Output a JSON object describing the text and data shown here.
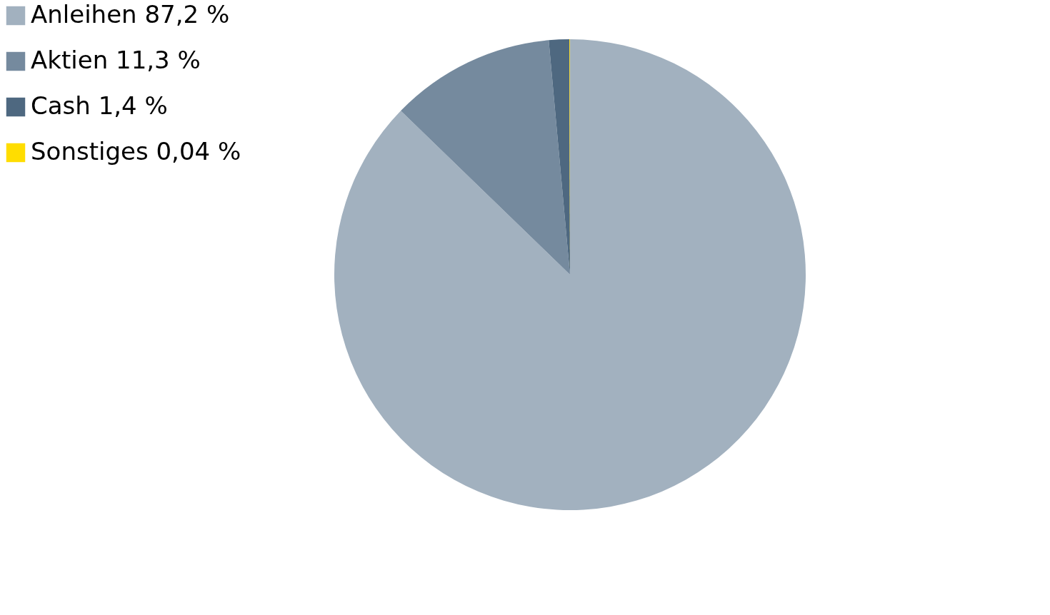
{
  "chart_data": {
    "type": "pie",
    "categories": [
      "Anleihen",
      "Aktien",
      "Cash",
      "Sonstiges"
    ],
    "values": [
      87.2,
      11.3,
      1.4,
      0.04
    ],
    "value_labels": [
      "87,2 %",
      "11,3 %",
      "1,4 %",
      "0,04 %"
    ],
    "colors": [
      "#a2b1bf",
      "#758a9e",
      "#4e6880",
      "#ffdd00"
    ],
    "legend": "left"
  }
}
